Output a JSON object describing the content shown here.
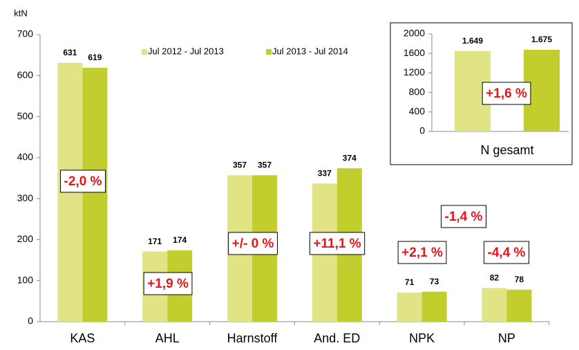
{
  "chart_data": [
    {
      "type": "bar",
      "y_label": "ktN",
      "categories": [
        "KAS",
        "AHL",
        "Harnstoff",
        "And. ED",
        "NPK",
        "NP"
      ],
      "series": [
        {
          "name": "Jul 2012 - Jul 2013",
          "color": "#e0e485",
          "values": [
            631,
            171,
            357,
            337,
            71,
            82
          ]
        },
        {
          "name": "Jul 2013 - Jul 2014",
          "color": "#c2ce2e",
          "values": [
            619,
            174,
            357,
            374,
            73,
            78
          ]
        }
      ],
      "ylim": [
        0,
        700
      ],
      "yticks": [
        0,
        100,
        200,
        300,
        400,
        500,
        600,
        700
      ],
      "annotations": [
        "-2,0 %",
        "+1,9 %",
        "+/- 0 %",
        "+11,1 %",
        "+2,1 %",
        "-4,4 %",
        "-1,4 %"
      ]
    },
    {
      "type": "bar",
      "categories": [
        "N gesamt"
      ],
      "series": [
        {
          "color": "#e0e485",
          "values": [
            1649
          ],
          "value_labels": [
            "1.649"
          ]
        },
        {
          "color": "#c2ce2e",
          "values": [
            1675
          ],
          "value_labels": [
            "1.675"
          ]
        }
      ],
      "ylim": [
        0,
        2000
      ],
      "yticks": [
        0,
        400,
        800,
        1200,
        1600,
        2000
      ],
      "annotations": [
        "+1,6 %"
      ]
    }
  ]
}
